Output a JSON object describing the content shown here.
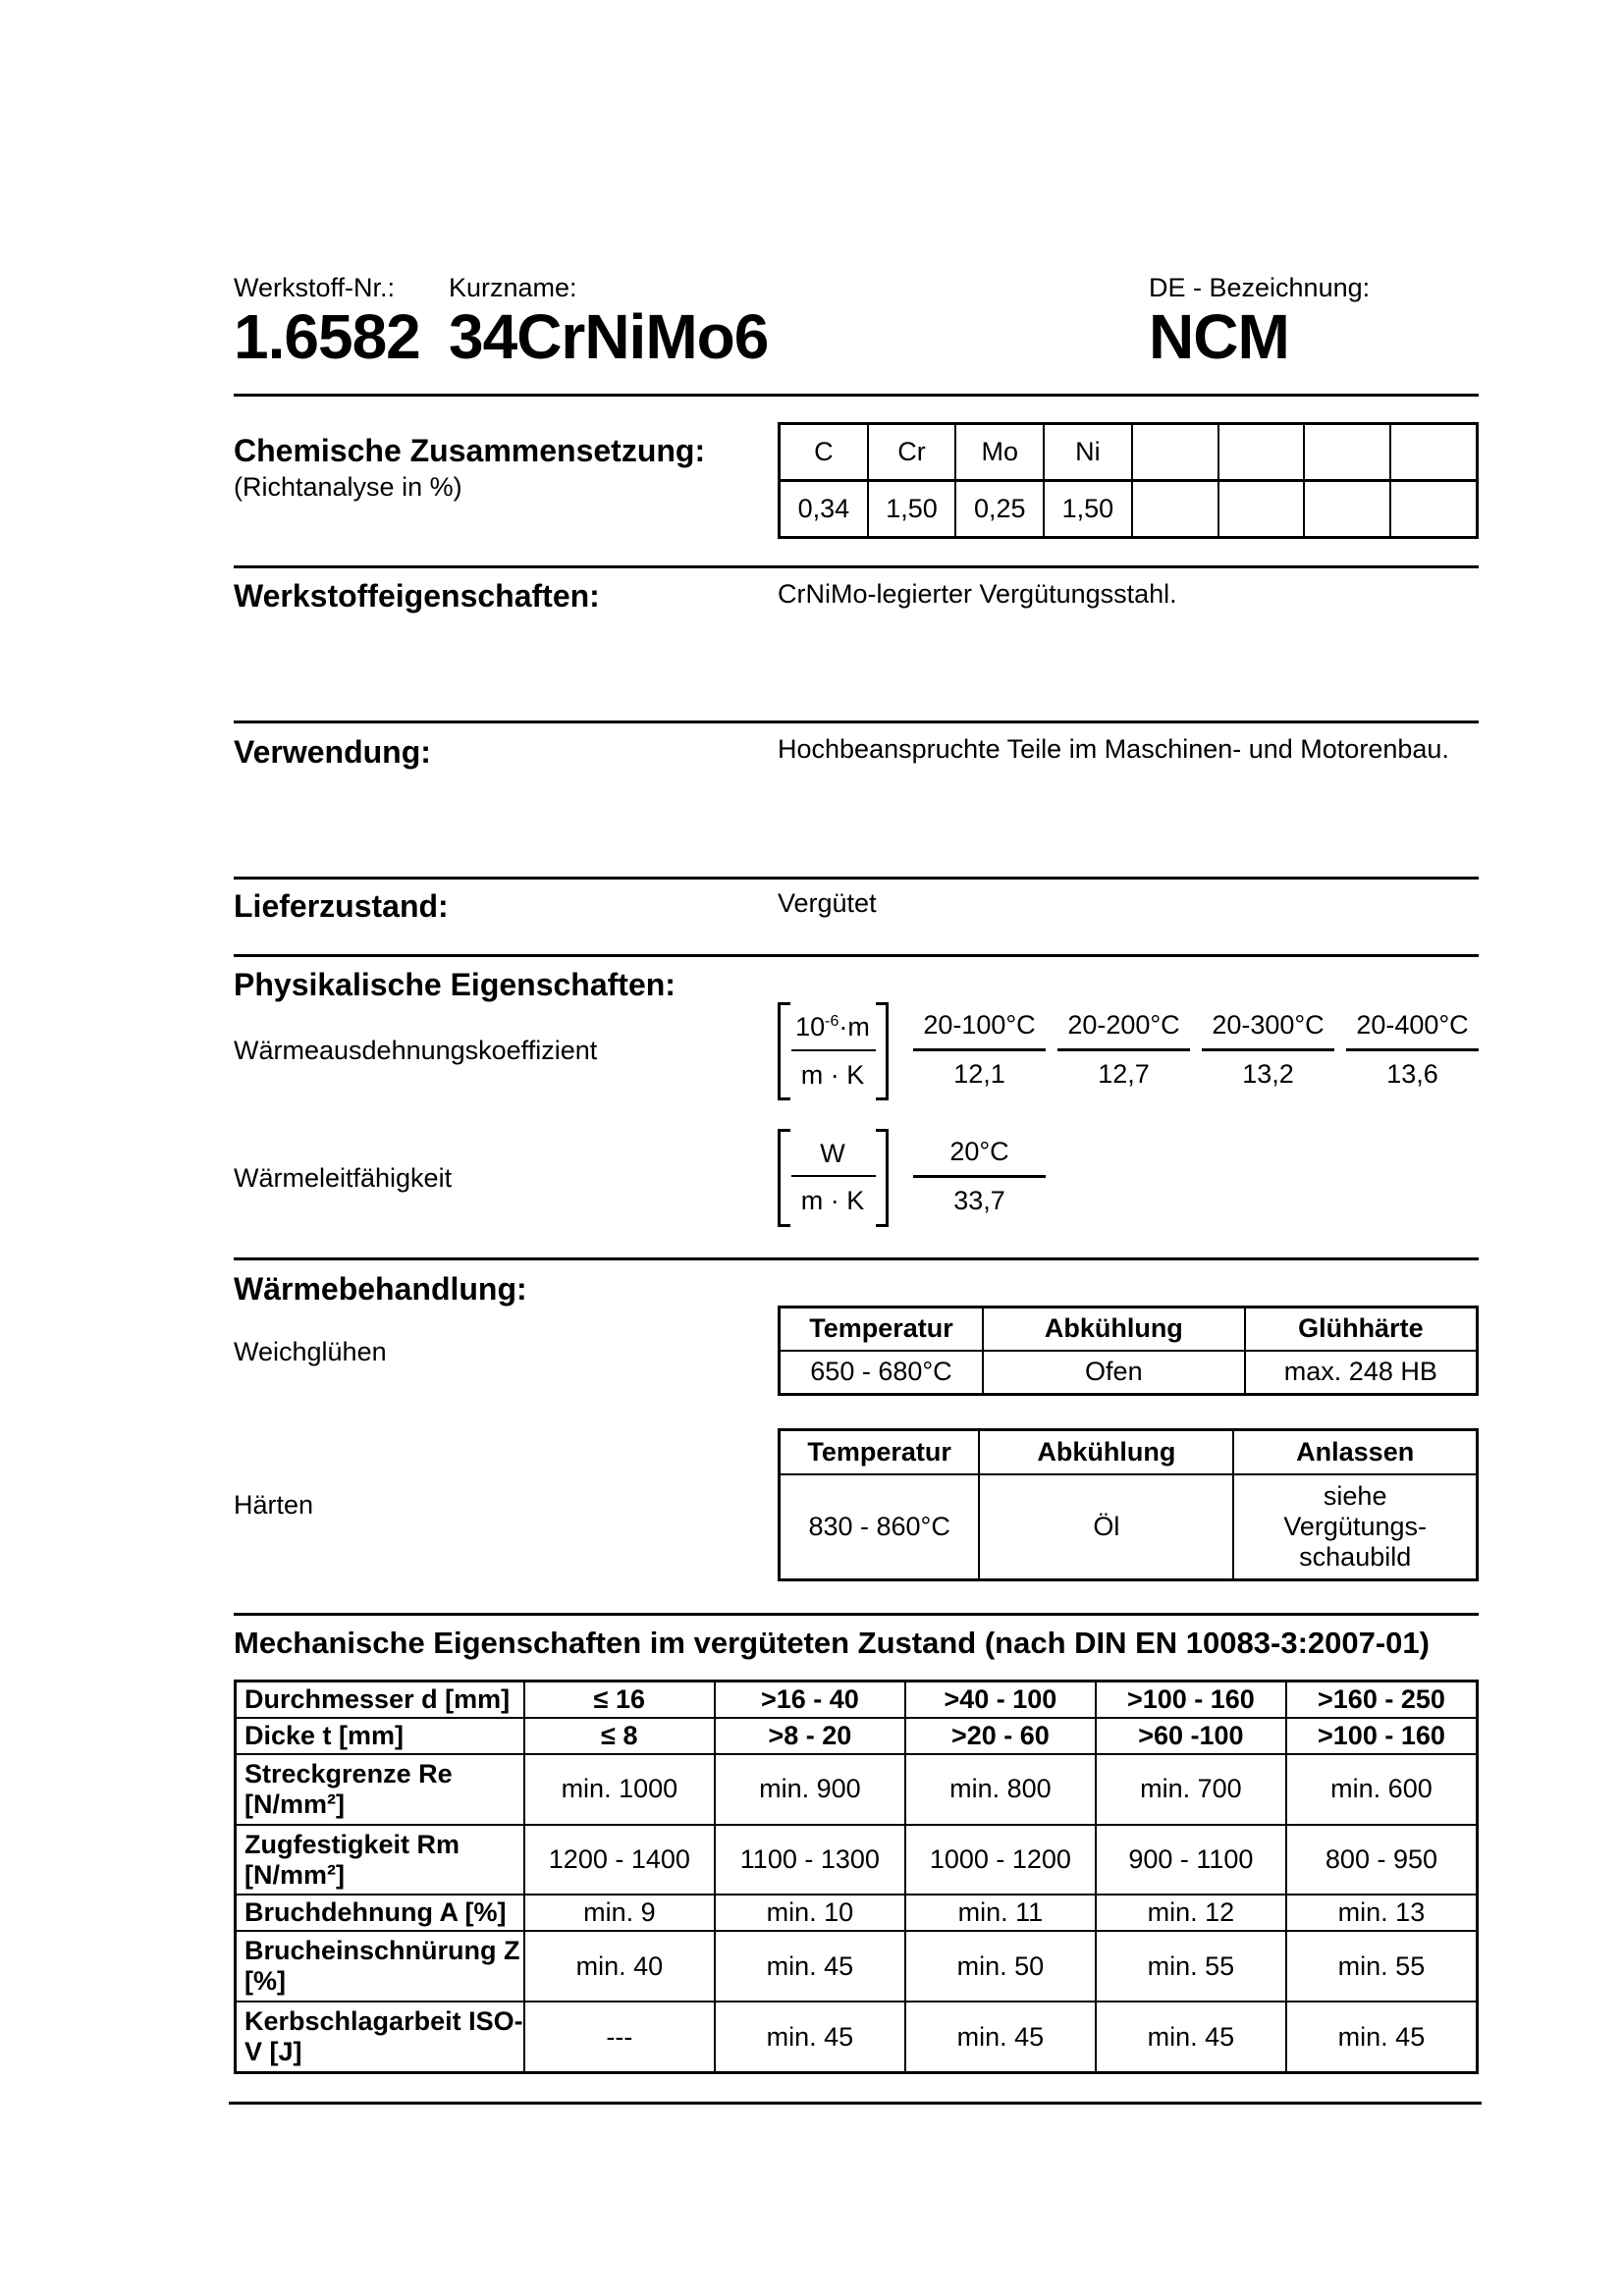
{
  "header": {
    "werkstoff_label": "Werkstoff-Nr.:",
    "werkstoff_nr": "1.6582",
    "kurzname_label": "Kurzname:",
    "kurzname": "34CrNiMo6",
    "de_label": "DE - Bezeichnung:",
    "de_value": "NCM"
  },
  "chem": {
    "title": "Chemische Zusammensetzung:",
    "subtitle": "(Richtanalyse in %)",
    "elements": [
      "C",
      "Cr",
      "Mo",
      "Ni",
      "",
      "",
      "",
      ""
    ],
    "values": [
      "0,34",
      "1,50",
      "0,25",
      "1,50",
      "",
      "",
      "",
      ""
    ]
  },
  "eigenschaften": {
    "title": "Werkstoffeigenschaften:",
    "text": "CrNiMo-legierter Vergütungsstahl."
  },
  "verwendung": {
    "title": "Verwendung:",
    "text": "Hochbeanspruchte Teile im Maschinen- und Motorenbau."
  },
  "liefer": {
    "title": "Lieferzustand:",
    "text": "Vergütet"
  },
  "phys": {
    "title": "Physikalische Eigenschaften:",
    "ausdehnung": {
      "label": "Wärmeausdehnungskoeffizient",
      "unit_num": "10",
      "unit_exp": "-6",
      "unit_num_rest": "·m",
      "unit_den": "m · K",
      "ranges": [
        "20-100°C",
        "20-200°C",
        "20-300°C",
        "20-400°C"
      ],
      "values": [
        "12,1",
        "12,7",
        "13,2",
        "13,6"
      ]
    },
    "leit": {
      "label": "Wärmeleitfähigkeit",
      "unit_num": "W",
      "unit_den": "m · K",
      "ranges": [
        "20°C"
      ],
      "values": [
        "33,7"
      ]
    }
  },
  "waerme": {
    "title": "Wärmebehandlung:",
    "weich": {
      "label": "Weichglühen",
      "headers": [
        "Temperatur",
        "Abkühlung",
        "Glühhärte"
      ],
      "values": [
        "650 - 680°C",
        "Ofen",
        "max. 248 HB"
      ]
    },
    "haerten": {
      "label": "Härten",
      "headers": [
        "Temperatur",
        "Abkühlung",
        "Anlassen"
      ],
      "values": [
        "830 - 860°C",
        "Öl",
        "siehe Vergütungs-schaubild"
      ]
    }
  },
  "mech": {
    "title": "Mechanische Eigenschaften im vergüteten Zustand (nach DIN EN 10083-3:2007-01)",
    "rows": [
      {
        "label": "Durchmesser d [mm]",
        "bold": true,
        "cells": [
          "≤ 16",
          ">16 - 40",
          ">40 - 100",
          ">100 - 160",
          ">160 - 250"
        ]
      },
      {
        "label": "Dicke t [mm]",
        "bold": true,
        "cells": [
          "≤ 8",
          ">8 - 20",
          ">20 - 60",
          ">60 -100",
          ">100 - 160"
        ]
      },
      {
        "label": "Streckgrenze Re [N/mm²]",
        "cells": [
          "min. 1000",
          "min. 900",
          "min. 800",
          "min. 700",
          "min. 600"
        ]
      },
      {
        "label": "Zugfestigkeit Rm [N/mm²]",
        "cells": [
          "1200 - 1400",
          "1100 - 1300",
          "1000 - 1200",
          "900 - 1100",
          "800 - 950"
        ]
      },
      {
        "label": "Bruchdehnung A [%]",
        "cells": [
          "min. 9",
          "min. 10",
          "min. 11",
          "min. 12",
          "min. 13"
        ]
      },
      {
        "label": "Brucheinschnürung Z [%]",
        "cells": [
          "min. 40",
          "min. 45",
          "min. 50",
          "min. 55",
          "min. 55"
        ]
      },
      {
        "label": "Kerbschlagarbeit ISO-V [J]",
        "cells": [
          "---",
          "min. 45",
          "min. 45",
          "min. 45",
          "min. 45"
        ]
      }
    ]
  }
}
